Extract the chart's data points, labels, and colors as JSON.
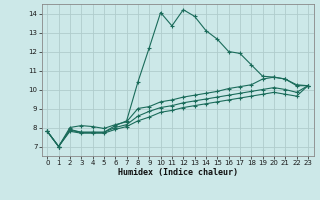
{
  "bg_color": "#cce8e8",
  "grid_color": "#b0cccc",
  "line_color": "#1a6b5a",
  "xlabel": "Humidex (Indice chaleur)",
  "xlim": [
    -0.5,
    23.5
  ],
  "ylim": [
    6.5,
    14.5
  ],
  "yticks": [
    7,
    8,
    9,
    10,
    11,
    12,
    13,
    14
  ],
  "xticks": [
    0,
    1,
    2,
    3,
    4,
    5,
    6,
    7,
    8,
    9,
    10,
    11,
    12,
    13,
    14,
    15,
    16,
    17,
    18,
    19,
    20,
    21,
    22,
    23
  ],
  "line1_x": [
    0,
    1,
    2,
    3,
    4,
    5,
    6,
    7,
    8,
    9,
    10,
    11,
    12,
    13,
    14,
    15,
    16,
    17,
    18,
    19,
    20,
    21,
    22,
    23
  ],
  "line1_y": [
    7.8,
    7.0,
    7.9,
    7.75,
    7.75,
    7.75,
    8.1,
    8.35,
    10.4,
    12.2,
    14.05,
    13.35,
    14.2,
    13.85,
    13.1,
    12.65,
    12.0,
    11.9,
    11.3,
    10.7,
    10.65,
    10.55,
    10.2,
    10.2
  ],
  "line2_x": [
    0,
    1,
    2,
    3,
    4,
    5,
    6,
    7,
    8,
    9,
    10,
    11,
    12,
    13,
    14,
    15,
    16,
    17,
    18,
    19,
    20,
    21,
    22,
    23
  ],
  "line2_y": [
    7.8,
    7.0,
    8.0,
    8.1,
    8.05,
    7.95,
    8.15,
    8.3,
    9.0,
    9.1,
    9.35,
    9.45,
    9.6,
    9.7,
    9.8,
    9.9,
    10.05,
    10.15,
    10.25,
    10.55,
    10.65,
    10.55,
    10.25,
    10.2
  ],
  "line3_x": [
    0,
    1,
    2,
    3,
    4,
    5,
    6,
    7,
    8,
    9,
    10,
    11,
    12,
    13,
    14,
    15,
    16,
    17,
    18,
    19,
    20,
    21,
    22,
    23
  ],
  "line3_y": [
    7.8,
    7.0,
    7.85,
    7.75,
    7.75,
    7.75,
    8.0,
    8.15,
    8.6,
    8.85,
    9.05,
    9.15,
    9.3,
    9.4,
    9.5,
    9.6,
    9.7,
    9.8,
    9.9,
    10.0,
    10.1,
    10.0,
    9.85,
    10.2
  ],
  "line4_x": [
    0,
    1,
    2,
    3,
    4,
    5,
    6,
    7,
    8,
    9,
    10,
    11,
    12,
    13,
    14,
    15,
    16,
    17,
    18,
    19,
    20,
    21,
    22,
    23
  ],
  "line4_y": [
    7.8,
    7.0,
    7.8,
    7.7,
    7.7,
    7.7,
    7.9,
    8.05,
    8.35,
    8.55,
    8.8,
    8.9,
    9.05,
    9.15,
    9.25,
    9.35,
    9.45,
    9.55,
    9.65,
    9.75,
    9.85,
    9.75,
    9.65,
    10.2
  ]
}
